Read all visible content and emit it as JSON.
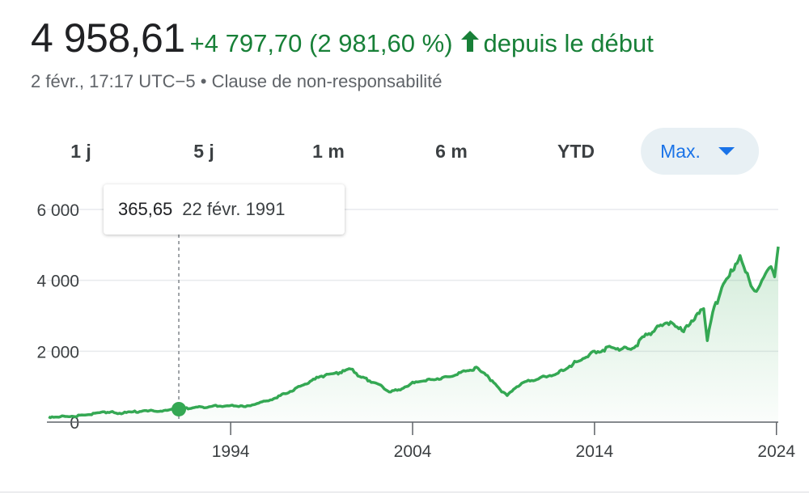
{
  "header": {
    "price": "4 958,61",
    "change": "+4 797,70 (2 981,60 %)",
    "arrow_icon": "arrow-up-icon",
    "period": "depuis le début",
    "timestamp": "2 févr., 17:17 UTC−5",
    "separator": "•",
    "disclaimer": "Clause de non-responsabilité"
  },
  "tabs": [
    {
      "label": "1 j"
    },
    {
      "label": "5 j"
    },
    {
      "label": "1 m"
    },
    {
      "label": "6 m"
    },
    {
      "label": "YTD"
    },
    {
      "label": "Max.",
      "active": true
    }
  ],
  "tooltip": {
    "value": "365,65",
    "date": "22 févr. 1991"
  },
  "colors": {
    "up": "#188038",
    "line": "#34a853",
    "accent": "#1a73e8"
  },
  "chart_data": {
    "type": "area",
    "x_tick_labels": [
      "1994",
      "2004",
      "2014",
      "2024"
    ],
    "x_ticks": [
      1994,
      2004,
      2014,
      2024
    ],
    "y_tick_labels": [
      "6 000",
      "4 000",
      "2 000",
      "0"
    ],
    "y_ticks": [
      6000,
      4000,
      2000,
      0
    ],
    "xlim": [
      1983.9,
      2024.1
    ],
    "ylim": [
      0,
      6000
    ],
    "grid": true,
    "marker": {
      "x": 1991.15,
      "y": 365.65
    },
    "series": [
      {
        "x": [
          1984.0,
          1985.0,
          1986.0,
          1987.5,
          1987.9,
          1989.0,
          1990.5,
          1991.15,
          1992.0,
          1993.0,
          1994.0,
          1994.9,
          1996.0,
          1997.0,
          1998.0,
          1999.0,
          2000.0,
          2000.6,
          2001.0,
          2002.0,
          2002.8,
          2003.5,
          2004.0,
          2005.0,
          2006.0,
          2007.0,
          2007.6,
          2008.2,
          2008.9,
          2009.2,
          2010.0,
          2011.0,
          2012.0,
          2013.0,
          2014.0,
          2015.0,
          2016.0,
          2017.0,
          2018.0,
          2018.9,
          2019.5,
          2020.0,
          2020.2,
          2020.5,
          2021.0,
          2021.5,
          2022.0,
          2022.4,
          2022.8,
          2023.2,
          2023.6,
          2023.9,
          2024.1
        ],
        "y": [
          150,
          160,
          200,
          300,
          250,
          300,
          330,
          365.65,
          410,
          450,
          470,
          460,
          600,
          800,
          1050,
          1300,
          1400,
          1500,
          1300,
          1100,
          850,
          960,
          1130,
          1200,
          1280,
          1450,
          1520,
          1250,
          850,
          750,
          1100,
          1250,
          1380,
          1700,
          2000,
          2100,
          2050,
          2500,
          2800,
          2550,
          2900,
          3200,
          2300,
          3100,
          3800,
          4300,
          4700,
          4200,
          3700,
          4000,
          4350,
          4100,
          4950
        ]
      }
    ]
  }
}
